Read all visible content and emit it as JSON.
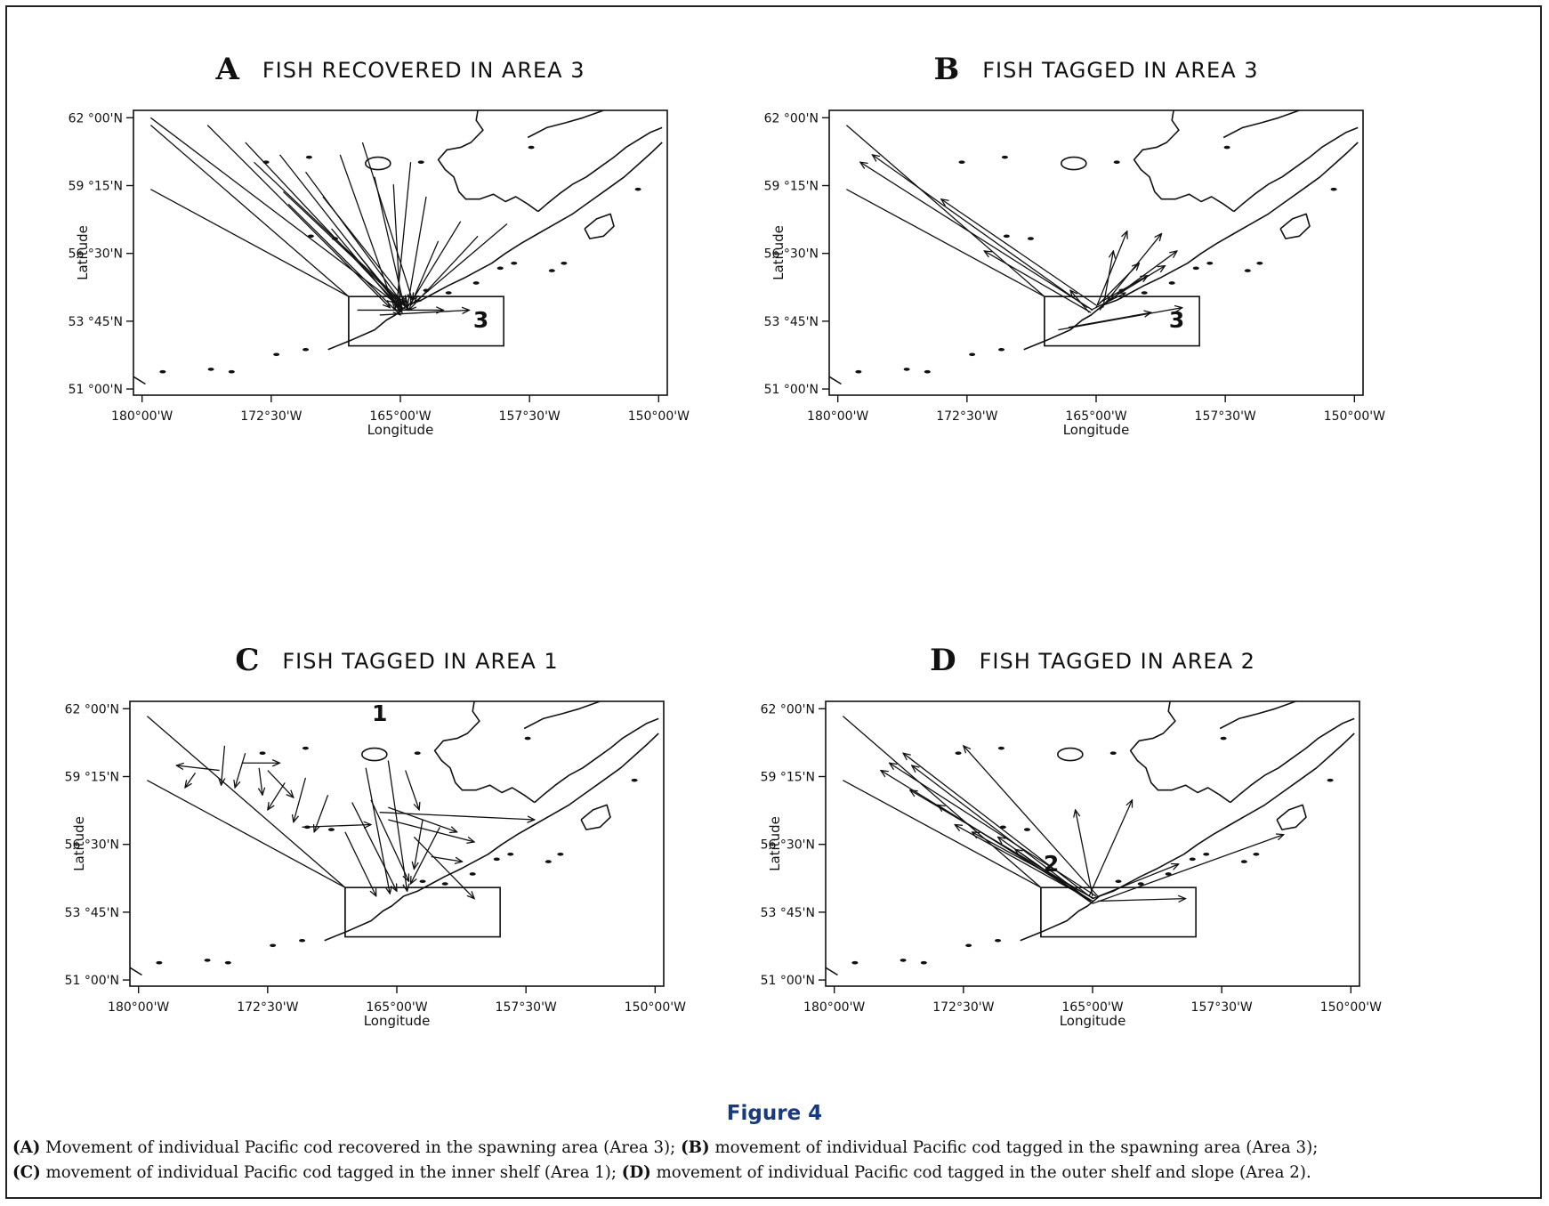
{
  "figure": {
    "label": "Figure 4",
    "caption": [
      {
        "letter": "(A)",
        "text": " Movement of individual Pacific cod recovered in the spawning area (Area 3); "
      },
      {
        "letter": "(B)",
        "text": " movement of individual Pacific cod tagged in the spawning area (Area 3);"
      },
      {
        "letter": "(C)",
        "text": " movement of individual Pacific cod tagged in the inner shelf (Area 1); "
      },
      {
        "letter": "(D)",
        "text": " movement of individual Pacific cod tagged in the outer shelf and slope (Area 2)."
      }
    ]
  },
  "axes": {
    "xlabel": "Longitude",
    "ylabel": "Latitude",
    "x_ticks": [
      "180°00'W",
      "172°30'W",
      "165°00'W",
      "157°30'W",
      "150°00'W"
    ],
    "y_ticks": [
      "62 °00'N",
      "59 °15'N",
      "56 °30'N",
      "53 °45'N",
      "51 °00'N"
    ],
    "x_range_deg_west": [
      180.5,
      149.5
    ],
    "y_range_deg_north": [
      50.75,
      62.3
    ]
  },
  "chart_data": [
    {
      "type": "map",
      "panel": "A",
      "title": "FISH RECOVERED IN AREA 3",
      "highlight_area": "3",
      "boxes": [
        {
          "label": "3",
          "lon_w": [
            168.0,
            159.0
          ],
          "lat_n": [
            52.75,
            54.75
          ]
        }
      ],
      "movements": [
        {
          "from": [
            179.5,
            62.0
          ],
          "to": [
            165.3,
            54.5
          ]
        },
        {
          "from": [
            176.2,
            61.7
          ],
          "to": [
            165.6,
            54.3
          ]
        },
        {
          "from": [
            174.0,
            61.0
          ],
          "to": [
            165.0,
            54.3
          ]
        },
        {
          "from": [
            173.5,
            60.2
          ],
          "to": [
            164.7,
            54.4
          ]
        },
        {
          "from": [
            172.0,
            60.5
          ],
          "to": [
            164.9,
            54.2
          ]
        },
        {
          "from": [
            171.8,
            59.0
          ],
          "to": [
            164.5,
            54.2
          ]
        },
        {
          "from": [
            170.5,
            59.8
          ],
          "to": [
            164.8,
            54.4
          ]
        },
        {
          "from": [
            169.5,
            58.8
          ],
          "to": [
            164.6,
            54.5
          ]
        },
        {
          "from": [
            168.5,
            60.5
          ],
          "to": [
            165.3,
            54.2
          ]
        },
        {
          "from": [
            167.2,
            61.0
          ],
          "to": [
            164.3,
            54.6
          ]
        },
        {
          "from": [
            166.5,
            59.6
          ],
          "to": [
            164.8,
            54.4
          ]
        },
        {
          "from": [
            165.4,
            59.3
          ],
          "to": [
            165.0,
            54.3
          ]
        },
        {
          "from": [
            164.4,
            60.2
          ],
          "to": [
            165.2,
            54.5
          ]
        },
        {
          "from": [
            163.5,
            58.8
          ],
          "to": [
            164.6,
            54.3
          ]
        },
        {
          "from": [
            162.8,
            57.0
          ],
          "to": [
            164.4,
            54.4
          ]
        },
        {
          "from": [
            161.5,
            57.8
          ],
          "to": [
            164.3,
            54.6
          ]
        },
        {
          "from": [
            160.5,
            57.2
          ],
          "to": [
            164.5,
            54.2
          ]
        },
        {
          "from": [
            158.8,
            57.7
          ],
          "to": [
            164.2,
            54.5
          ]
        },
        {
          "from": [
            167.5,
            54.2
          ],
          "to": [
            162.5,
            54.2
          ]
        },
        {
          "from": [
            166.2,
            54.0
          ],
          "to": [
            161.0,
            54.2
          ]
        },
        {
          "from": [
            171.5,
            58.5
          ],
          "to": [
            165.0,
            54.0
          ]
        },
        {
          "from": [
            169.0,
            57.5
          ],
          "to": [
            164.9,
            54.1
          ]
        },
        {
          "from": [
            167.5,
            56.5
          ],
          "to": [
            164.9,
            54.3
          ]
        }
      ]
    },
    {
      "type": "map",
      "panel": "B",
      "title": "FISH TAGGED IN AREA 3",
      "highlight_area": "3",
      "boxes": [
        {
          "label": "3",
          "lon_w": [
            168.0,
            159.0
          ],
          "lat_n": [
            52.75,
            54.75
          ]
        }
      ],
      "movements": [
        {
          "from": [
            165.2,
            54.2
          ],
          "to": [
            178.7,
            60.2
          ]
        },
        {
          "from": [
            165.5,
            54.3
          ],
          "to": [
            178.0,
            60.5
          ]
        },
        {
          "from": [
            165.0,
            54.4
          ],
          "to": [
            174.0,
            58.7
          ]
        },
        {
          "from": [
            165.3,
            54.1
          ],
          "to": [
            171.5,
            56.6
          ]
        },
        {
          "from": [
            165.0,
            54.3
          ],
          "to": [
            163.2,
            57.4
          ]
        },
        {
          "from": [
            164.8,
            54.2
          ],
          "to": [
            161.2,
            57.3
          ]
        },
        {
          "from": [
            164.6,
            54.4
          ],
          "to": [
            160.3,
            56.6
          ]
        },
        {
          "from": [
            164.3,
            54.6
          ],
          "to": [
            161.0,
            56.0
          ]
        },
        {
          "from": [
            164.6,
            54.3
          ],
          "to": [
            164.0,
            56.6
          ]
        },
        {
          "from": [
            164.9,
            54.4
          ],
          "to": [
            162.5,
            56.1
          ]
        },
        {
          "from": [
            165.4,
            54.1
          ],
          "to": [
            166.5,
            55.0
          ]
        },
        {
          "from": [
            166.6,
            53.5
          ],
          "to": [
            161.8,
            54.1
          ]
        },
        {
          "from": [
            167.2,
            53.4
          ],
          "to": [
            160.0,
            54.3
          ]
        },
        {
          "from": [
            164.8,
            54.5
          ],
          "to": [
            162.0,
            55.6
          ]
        },
        {
          "from": [
            165.3,
            54.2
          ],
          "to": [
            163.3,
            54.9
          ]
        }
      ]
    },
    {
      "type": "map",
      "panel": "C",
      "title": "FISH TAGGED IN AREA 1",
      "highlight_area": "1",
      "boxes": [
        {
          "label": "1",
          "lon_w": [
            168.0,
            159.0
          ],
          "lat_n": [
            52.75,
            54.75
          ]
        }
      ],
      "area_label_position": [
        166.0,
        61.5
      ],
      "movements": [
        {
          "from": [
            175.3,
            59.5
          ],
          "to": [
            177.8,
            59.7
          ]
        },
        {
          "from": [
            176.7,
            59.4
          ],
          "to": [
            177.3,
            58.8
          ]
        },
        {
          "from": [
            175.0,
            60.5
          ],
          "to": [
            175.2,
            58.9
          ]
        },
        {
          "from": [
            173.8,
            60.2
          ],
          "to": [
            174.4,
            58.8
          ]
        },
        {
          "from": [
            173.0,
            59.6
          ],
          "to": [
            172.8,
            58.5
          ]
        },
        {
          "from": [
            172.5,
            59.5
          ],
          "to": [
            171.0,
            58.4
          ]
        },
        {
          "from": [
            174.0,
            59.8
          ],
          "to": [
            171.8,
            59.8
          ]
        },
        {
          "from": [
            171.5,
            59.0
          ],
          "to": [
            172.5,
            57.9
          ]
        },
        {
          "from": [
            170.3,
            59.2
          ],
          "to": [
            171.0,
            57.4
          ]
        },
        {
          "from": [
            169.0,
            58.5
          ],
          "to": [
            169.8,
            57.0
          ]
        },
        {
          "from": [
            168.0,
            57.0
          ],
          "to": [
            166.2,
            54.4
          ]
        },
        {
          "from": [
            167.6,
            58.2
          ],
          "to": [
            165.0,
            54.6
          ]
        },
        {
          "from": [
            166.8,
            59.6
          ],
          "to": [
            165.4,
            54.5
          ]
        },
        {
          "from": [
            165.5,
            59.9
          ],
          "to": [
            164.4,
            54.6
          ]
        },
        {
          "from": [
            164.5,
            59.5
          ],
          "to": [
            163.7,
            57.9
          ]
        },
        {
          "from": [
            165.5,
            58.0
          ],
          "to": [
            161.5,
            57.0
          ]
        },
        {
          "from": [
            165.5,
            57.5
          ],
          "to": [
            160.5,
            56.6
          ]
        },
        {
          "from": [
            166.0,
            57.8
          ],
          "to": [
            157.0,
            57.5
          ]
        },
        {
          "from": [
            170.5,
            57.2
          ],
          "to": [
            166.5,
            57.3
          ]
        },
        {
          "from": [
            166.5,
            58.3
          ],
          "to": [
            164.3,
            55.0
          ]
        },
        {
          "from": [
            163.5,
            57.5
          ],
          "to": [
            164.0,
            55.5
          ]
        },
        {
          "from": [
            162.5,
            57.2
          ],
          "to": [
            164.2,
            54.9
          ]
        },
        {
          "from": [
            164.0,
            56.8
          ],
          "to": [
            160.5,
            54.3
          ]
        },
        {
          "from": [
            163.0,
            56.0
          ],
          "to": [
            161.2,
            55.8
          ]
        }
      ]
    },
    {
      "type": "map",
      "panel": "D",
      "title": "FISH TAGGED IN AREA 2",
      "highlight_area": "2",
      "boxes": [
        {
          "label": "2",
          "lon_w": [
            168.0,
            159.0
          ],
          "lat_n": [
            52.75,
            54.75
          ]
        }
      ],
      "movements": [
        {
          "from": [
            165.0,
            54.2
          ],
          "to": [
            177.3,
            59.5
          ]
        },
        {
          "from": [
            164.8,
            54.4
          ],
          "to": [
            176.8,
            59.8
          ]
        },
        {
          "from": [
            165.3,
            54.3
          ],
          "to": [
            175.5,
            59.7
          ]
        },
        {
          "from": [
            165.0,
            54.3
          ],
          "to": [
            176.0,
            60.2
          ]
        },
        {
          "from": [
            164.7,
            54.4
          ],
          "to": [
            172.5,
            60.5
          ]
        },
        {
          "from": [
            165.2,
            54.4
          ],
          "to": [
            175.6,
            58.7
          ]
        },
        {
          "from": [
            165.1,
            54.2
          ],
          "to": [
            174.0,
            58.1
          ]
        },
        {
          "from": [
            165.0,
            54.2
          ],
          "to": [
            173.0,
            57.3
          ]
        },
        {
          "from": [
            164.9,
            54.3
          ],
          "to": [
            172.0,
            57.0
          ]
        },
        {
          "from": [
            165.2,
            54.2
          ],
          "to": [
            170.5,
            56.8
          ]
        },
        {
          "from": [
            165.0,
            54.1
          ],
          "to": [
            169.5,
            56.3
          ]
        },
        {
          "from": [
            165.0,
            54.4
          ],
          "to": [
            166.0,
            57.9
          ]
        },
        {
          "from": [
            165.2,
            54.4
          ],
          "to": [
            162.7,
            58.3
          ]
        },
        {
          "from": [
            165.0,
            54.3
          ],
          "to": [
            160.0,
            55.7
          ]
        },
        {
          "from": [
            164.7,
            54.2
          ],
          "to": [
            159.6,
            54.3
          ]
        },
        {
          "from": [
            165.0,
            54.1
          ],
          "to": [
            153.9,
            56.9
          ]
        }
      ]
    }
  ]
}
